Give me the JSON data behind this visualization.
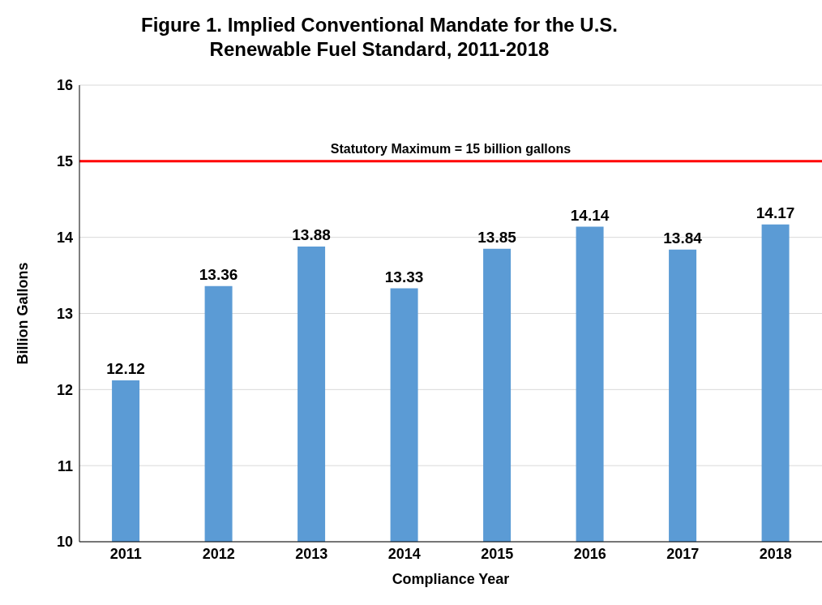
{
  "chart_data": {
    "type": "bar",
    "title": "Figure 1. Implied Conventional Mandate for the U.S.\nRenewable Fuel Standard, 2011-2018",
    "xlabel": "Compliance Year",
    "ylabel": "Billion Gallons",
    "categories": [
      "2011",
      "2012",
      "2013",
      "2014",
      "2015",
      "2016",
      "2017",
      "2018"
    ],
    "values": [
      12.12,
      13.36,
      13.88,
      13.33,
      13.85,
      14.14,
      13.84,
      14.17
    ],
    "color": "#5b9bd5",
    "ylim": [
      10,
      16
    ],
    "yticks": [
      10,
      11,
      12,
      13,
      14,
      15,
      16
    ],
    "grid": "y",
    "data_labels": true,
    "ref_lines": [
      {
        "axis": "y",
        "value": 15,
        "label": "Statutory Maximum = 15 billion gallons",
        "color": "#ff0000"
      }
    ]
  }
}
